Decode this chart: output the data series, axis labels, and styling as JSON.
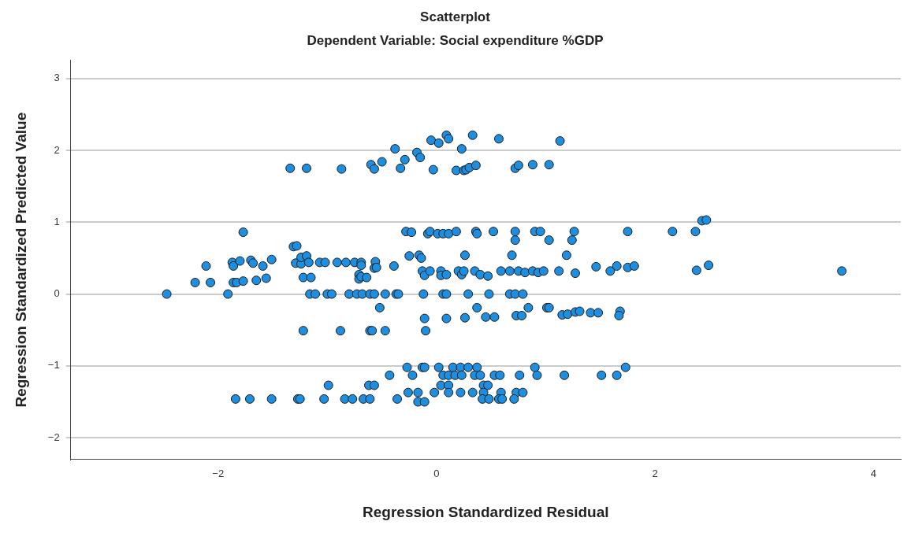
{
  "chart_data": {
    "type": "scatter",
    "title": "Scatterplot",
    "subtitle": "Dependent Variable: Social expenditure %GDP",
    "xlabel": "Regression Standardized Residual",
    "ylabel": "Regression Standardized Predicted Value",
    "xlim": [
      -3.35,
      4.25
    ],
    "xticks": [
      -2,
      0,
      2,
      4
    ],
    "ylim": [
      -2.3,
      3.25
    ],
    "yticks": [
      -2,
      -1,
      0,
      1,
      2,
      3
    ],
    "grid": "y",
    "legend": false,
    "marker": "circle",
    "series": [
      {
        "color": "#1e8fe0",
        "x": [
          -0.05,
          0.02,
          0.09,
          0.11,
          0.33,
          0.57,
          1.13,
          -0.38,
          -0.18,
          -0.15,
          0.23,
          -1.34,
          -1.19,
          -0.87,
          -0.6,
          -0.57,
          -0.5,
          -0.33,
          -0.29,
          -0.03,
          0.18,
          0.25,
          0.27,
          0.3,
          0.36,
          0.72,
          0.75,
          0.88,
          1.03,
          -1.77,
          -0.28,
          -0.23,
          -0.08,
          -0.06,
          0.01,
          0.06,
          0.11,
          0.18,
          0.36,
          0.37,
          0.52,
          0.72,
          0.72,
          0.9,
          0.95,
          1.03,
          1.26,
          1.24,
          1.75,
          2.16,
          2.37,
          2.43,
          2.47,
          0.26,
          0.69,
          1.19,
          -1.31,
          -1.28,
          -0.25,
          -0.16,
          -0.14,
          -2.11,
          -1.87,
          -1.86,
          -1.8,
          -1.7,
          -1.68,
          -1.59,
          -1.51,
          -1.29,
          -1.24,
          -1.24,
          -1.19,
          -1.17,
          -1.07,
          -1.02,
          -0.91,
          -0.83,
          -0.75,
          -0.69,
          -0.69,
          -0.56,
          -0.57,
          -0.55,
          -0.39,
          -0.13,
          -0.11,
          -0.06,
          0.04,
          0.04,
          0.09,
          0.2,
          0.23,
          0.25,
          0.35,
          0.4,
          0.47,
          0.59,
          0.67,
          0.75,
          0.81,
          0.88,
          0.93,
          0.98,
          1.12,
          1.27,
          1.46,
          1.59,
          1.65,
          1.75,
          1.81,
          2.38,
          2.49,
          3.71,
          -2.21,
          -2.07,
          -1.86,
          -1.83,
          -1.77,
          -1.65,
          -1.56,
          -1.22,
          -1.15,
          -0.71,
          -0.71,
          -0.69,
          -0.64,
          -2.47,
          -1.91,
          -1.16,
          -1.11,
          -1.0,
          -0.96,
          -0.8,
          -0.73,
          -0.68,
          -0.61,
          -0.57,
          -0.47,
          -0.37,
          -0.35,
          -0.12,
          0.06,
          0.09,
          0.29,
          0.48,
          0.67,
          0.72,
          0.79,
          -0.52,
          0.37,
          0.84,
          1.01,
          1.03,
          -0.11,
          0.09,
          0.26,
          0.45,
          0.53,
          0.73,
          0.78,
          1.15,
          1.2,
          1.27,
          1.31,
          1.41,
          1.48,
          1.68,
          1.67,
          -1.22,
          -0.88,
          -0.61,
          -0.59,
          -0.47,
          -0.1,
          -0.27,
          -0.13,
          -0.11,
          0.02,
          0.15,
          0.22,
          0.29,
          0.37,
          0.9,
          1.73,
          -0.43,
          -0.22,
          0.06,
          0.11,
          0.17,
          0.23,
          0.35,
          0.4,
          0.53,
          0.58,
          0.76,
          0.92,
          1.17,
          1.51,
          1.65,
          -0.99,
          -0.62,
          -0.57,
          0.04,
          0.11,
          0.43,
          0.47,
          -0.26,
          -0.17,
          -0.02,
          0.11,
          0.22,
          0.33,
          0.43,
          0.59,
          0.73,
          0.79,
          -1.84,
          -1.71,
          -1.51,
          -1.27,
          -1.25,
          -1.03,
          -0.84,
          -0.77,
          -0.67,
          -0.61,
          -0.36,
          0.42,
          0.48,
          0.57,
          0.6,
          0.71,
          -0.17,
          -0.11
        ],
        "values": [
          2.14,
          2.1,
          2.21,
          2.16,
          2.21,
          2.16,
          2.13,
          2.02,
          1.97,
          1.9,
          2.02,
          1.75,
          1.75,
          1.74,
          1.8,
          1.74,
          1.84,
          1.75,
          1.87,
          1.73,
          1.72,
          1.72,
          1.73,
          1.76,
          1.79,
          1.75,
          1.79,
          1.8,
          1.8,
          0.86,
          0.87,
          0.86,
          0.84,
          0.87,
          0.84,
          0.84,
          0.84,
          0.87,
          0.87,
          0.84,
          0.87,
          0.87,
          0.75,
          0.87,
          0.87,
          0.75,
          0.87,
          0.75,
          0.87,
          0.87,
          0.87,
          1.02,
          1.03,
          0.54,
          0.54,
          0.54,
          0.66,
          0.67,
          0.53,
          0.54,
          0.5,
          0.39,
          0.44,
          0.39,
          0.46,
          0.47,
          0.43,
          0.39,
          0.48,
          0.43,
          0.42,
          0.51,
          0.53,
          0.44,
          0.44,
          0.44,
          0.44,
          0.44,
          0.44,
          0.44,
          0.4,
          0.45,
          0.36,
          0.37,
          0.39,
          0.32,
          0.26,
          0.32,
          0.32,
          0.26,
          0.27,
          0.32,
          0.27,
          0.32,
          0.32,
          0.27,
          0.25,
          0.32,
          0.32,
          0.32,
          0.3,
          0.32,
          0.3,
          0.32,
          0.32,
          0.29,
          0.38,
          0.32,
          0.39,
          0.37,
          0.39,
          0.33,
          0.4,
          0.32,
          0.16,
          0.16,
          0.16,
          0.16,
          0.18,
          0.19,
          0.22,
          0.23,
          0.23,
          0.27,
          0.21,
          0.24,
          0.23,
          0,
          0,
          0,
          0,
          0,
          0,
          0,
          0,
          0,
          0,
          0,
          0,
          0,
          0,
          0,
          0,
          0,
          0,
          0,
          0,
          0,
          0,
          -0.19,
          -0.19,
          -0.19,
          -0.19,
          -0.19,
          -0.34,
          -0.34,
          -0.33,
          -0.32,
          -0.32,
          -0.3,
          -0.3,
          -0.29,
          -0.28,
          -0.25,
          -0.24,
          -0.26,
          -0.26,
          -0.24,
          -0.3,
          -0.51,
          -0.51,
          -0.51,
          -0.51,
          -0.51,
          -0.51,
          -1.02,
          -1.02,
          -1.02,
          -1.02,
          -1.02,
          -1.02,
          -1.02,
          -1.02,
          -1.02,
          -1.02,
          -1.13,
          -1.13,
          -1.13,
          -1.13,
          -1.13,
          -1.13,
          -1.13,
          -1.13,
          -1.13,
          -1.13,
          -1.13,
          -1.13,
          -1.13,
          -1.13,
          -1.13,
          -1.27,
          -1.27,
          -1.27,
          -1.27,
          -1.27,
          -1.27,
          -1.27,
          -1.37,
          -1.37,
          -1.37,
          -1.37,
          -1.37,
          -1.37,
          -1.37,
          -1.37,
          -1.37,
          -1.37,
          -1.46,
          -1.46,
          -1.46,
          -1.46,
          -1.46,
          -1.46,
          -1.46,
          -1.46,
          -1.46,
          -1.46,
          -1.46,
          -1.46,
          -1.46,
          -1.46,
          -1.46,
          -1.46,
          -1.5,
          -1.5
        ]
      }
    ]
  }
}
